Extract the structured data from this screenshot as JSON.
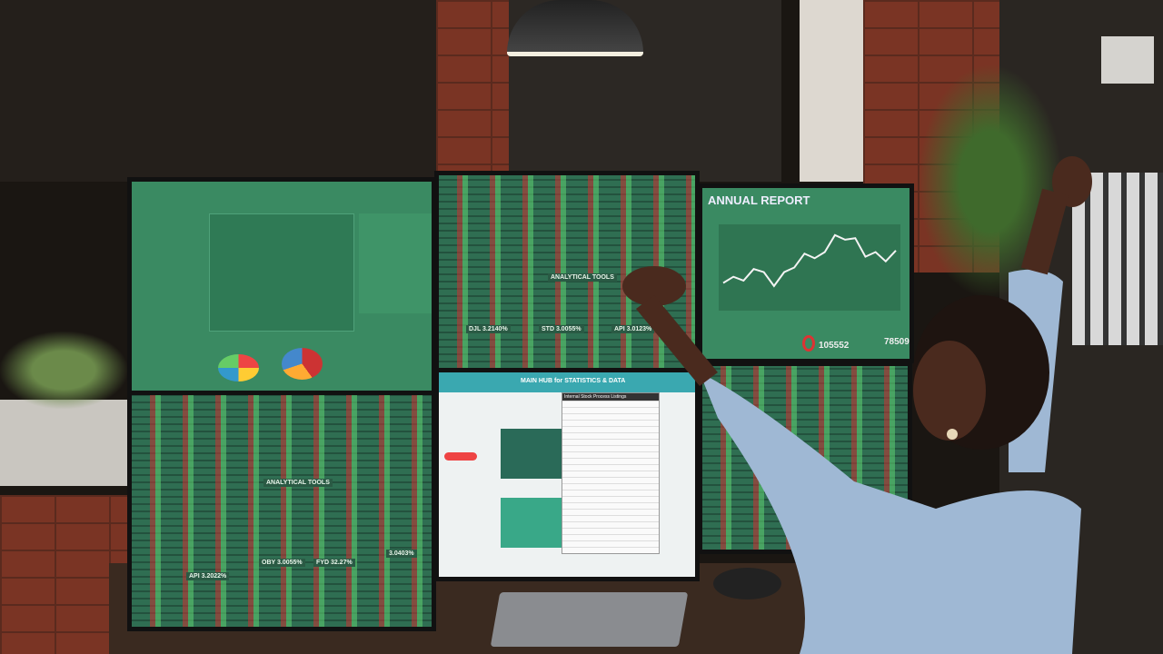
{
  "scene": {
    "description_free": true
  },
  "monitors": {
    "annual_report": {
      "title": "ANNUAL REPORT",
      "stat1": "105552",
      "stat2": "785097",
      "chart_values": [
        30,
        38,
        33,
        48,
        44,
        26,
        44,
        50,
        68,
        62,
        70,
        92,
        86,
        88,
        64,
        70,
        58,
        72
      ]
    },
    "hub": {
      "title": "MAIN HUB for STATISTICS & DATA",
      "popup_title": "Internal Stock Process Listings"
    },
    "ticker_top": {
      "label": "ANALYTICAL TOOLS",
      "quotes": [
        "DJL 3.2140%",
        "STD 3.0055%",
        "API 3.0123%"
      ]
    },
    "ticker_left": {
      "label": "ANALYTICAL TOOLS",
      "quotes": [
        "API 3.2022%",
        "OBY 3.0055%",
        "FYD 32.27%",
        "3.0403%"
      ]
    }
  },
  "colors": {
    "screen_green": "#2f6e52",
    "blouse": "#9fb8d4",
    "brick": "#7a3424"
  }
}
